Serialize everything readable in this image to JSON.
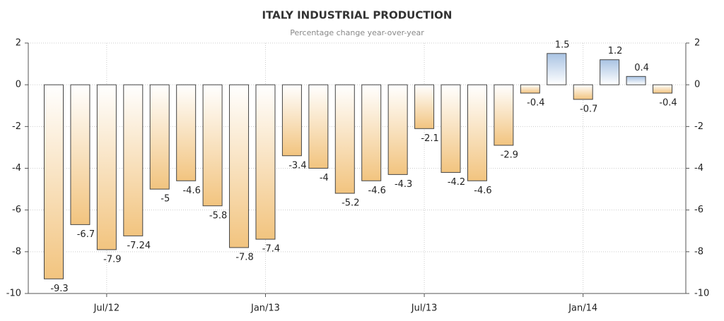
{
  "chart_data": {
    "type": "bar",
    "title": "ITALY INDUSTRIAL PRODUCTION",
    "subtitle": "Percentage change year-over-year",
    "categories": [
      null,
      null,
      "Jul/12",
      null,
      null,
      null,
      null,
      null,
      "Jan/13",
      null,
      null,
      null,
      null,
      null,
      "Jul/13",
      null,
      null,
      null,
      null,
      null,
      "Jan/14",
      null,
      null,
      null
    ],
    "values": [
      -9.3,
      -6.7,
      -7.9,
      -7.24,
      -5,
      -4.6,
      -5.8,
      -7.8,
      -7.4,
      -3.4,
      -4,
      -5.2,
      -4.6,
      -4.3,
      -2.1,
      -4.2,
      -4.6,
      -2.9,
      -0.4,
      1.5,
      -0.7,
      1.2,
      0.4,
      -0.4
    ],
    "colors": {
      "negative": "#f2c47f",
      "positive": "#a9c3e3"
    },
    "ylim": [
      -10,
      2
    ],
    "yticks": [
      -10,
      -8,
      -6,
      -4,
      -2,
      0,
      2
    ],
    "y2lim": [
      -10,
      2
    ],
    "y2ticks": [
      -10,
      -8,
      -6,
      -4,
      -2,
      0,
      2
    ],
    "grid": true
  }
}
